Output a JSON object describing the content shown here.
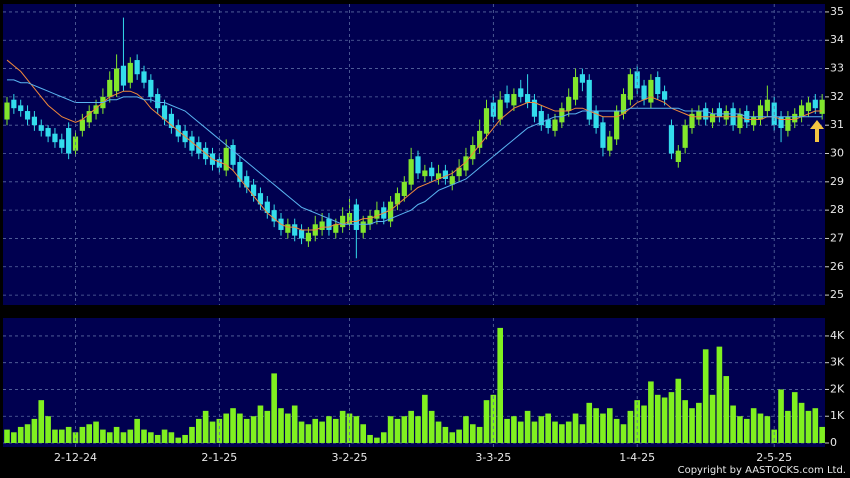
{
  "chart_data": [
    {
      "type": "candlestick",
      "open": [
        31.2,
        31.9,
        31.7,
        31.5,
        31.3,
        31.0,
        30.9,
        30.7,
        30.5,
        30.9,
        30.1,
        30.8,
        31.1,
        31.4,
        31.6,
        32.0,
        32.2,
        33.1,
        32.5,
        33.3,
        32.9,
        32.6,
        32.1,
        31.7,
        31.4,
        31.0,
        30.8,
        30.6,
        30.4,
        30.2,
        30.0,
        29.8,
        29.4,
        30.3,
        29.7,
        29.2,
        28.9,
        28.6,
        28.3,
        28.0,
        27.7,
        27.2,
        27.5,
        27.3,
        26.9,
        27.1,
        27.3,
        27.7,
        27.2,
        27.4,
        27.5,
        28.2,
        27.2,
        27.5,
        27.7,
        28.1,
        27.6,
        28.2,
        28.5,
        28.9,
        29.9,
        29.2,
        29.5,
        29.1,
        29.4,
        28.9,
        29.2,
        29.4,
        29.8,
        30.2,
        30.7,
        31.8,
        31.2,
        32.1,
        31.7,
        32.3,
        32.1,
        31.9,
        31.5,
        31.2,
        30.8,
        31.1,
        31.5,
        31.9,
        32.8,
        32.6,
        31.5,
        31.1,
        30.1,
        30.5,
        31.4,
        31.9,
        32.9,
        32.4,
        31.8,
        32.7,
        32.2,
        31.0,
        29.7,
        30.2,
        30.9,
        31.2,
        31.6,
        31.1,
        31.6,
        31.2,
        31.6,
        30.9,
        31.5,
        31.0,
        31.2,
        31.5,
        31.8,
        31.3,
        30.8,
        31.1,
        31.3,
        31.5,
        31.9,
        31.4
      ],
      "high": [
        32.0,
        32.1,
        31.9,
        31.7,
        31.5,
        31.2,
        31.0,
        30.9,
        30.7,
        31.1,
        30.8,
        31.4,
        31.7,
        31.9,
        32.3,
        32.9,
        33.5,
        34.8,
        33.4,
        33.5,
        33.1,
        32.8,
        32.3,
        31.9,
        31.6,
        31.2,
        31.0,
        30.8,
        30.6,
        30.4,
        30.2,
        30.0,
        30.5,
        30.5,
        29.9,
        29.4,
        29.1,
        28.8,
        28.5,
        28.2,
        27.9,
        27.7,
        27.7,
        27.5,
        27.4,
        27.8,
        27.9,
        27.9,
        27.7,
        28.1,
        28.4,
        28.4,
        27.8,
        28.0,
        28.3,
        28.3,
        28.5,
        28.8,
        29.2,
        30.2,
        30.1,
        29.6,
        29.7,
        29.6,
        29.6,
        29.4,
        29.8,
        30.2,
        30.6,
        31.2,
        31.9,
        32.1,
        32.2,
        32.4,
        32.3,
        32.6,
        32.8,
        32.1,
        31.7,
        31.4,
        31.4,
        31.8,
        32.3,
        33.0,
        33.0,
        32.8,
        31.7,
        31.3,
        30.8,
        31.7,
        32.3,
        33.0,
        33.1,
        32.6,
        32.8,
        32.9,
        32.4,
        31.2,
        30.3,
        31.2,
        31.6,
        31.7,
        31.8,
        31.6,
        31.8,
        31.7,
        31.8,
        31.6,
        31.7,
        31.5,
        31.9,
        32.4,
        32.0,
        31.5,
        31.5,
        31.6,
        31.9,
        32.0,
        32.1,
        32.1
      ],
      "low": [
        31.0,
        31.4,
        31.3,
        31.0,
        30.8,
        30.6,
        30.4,
        30.2,
        30.0,
        29.8,
        29.9,
        30.6,
        30.9,
        31.2,
        31.4,
        31.8,
        32.0,
        32.2,
        32.3,
        32.6,
        32.3,
        31.8,
        31.4,
        31.0,
        30.7,
        30.4,
        30.2,
        29.9,
        29.8,
        29.6,
        29.4,
        29.3,
        29.2,
        29.4,
        28.8,
        28.6,
        28.3,
        28.0,
        27.7,
        27.4,
        27.1,
        27.0,
        26.9,
        26.8,
        26.7,
        26.9,
        27.1,
        27.1,
        27.0,
        27.2,
        27.3,
        26.3,
        27.0,
        27.3,
        27.5,
        27.5,
        27.4,
        28.0,
        28.3,
        28.7,
        29.1,
        29.0,
        29.0,
        28.9,
        28.9,
        28.7,
        29.0,
        29.2,
        29.6,
        30.0,
        30.5,
        31.1,
        31.0,
        31.6,
        31.5,
        31.8,
        31.6,
        31.1,
        30.8,
        30.7,
        30.6,
        30.9,
        31.3,
        31.7,
        32.2,
        31.0,
        30.7,
        29.9,
        29.9,
        30.3,
        31.2,
        31.7,
        32.1,
        31.7,
        31.6,
        31.9,
        31.7,
        29.8,
        29.5,
        30.0,
        30.7,
        31.0,
        31.0,
        30.9,
        31.1,
        31.0,
        30.8,
        30.7,
        30.9,
        30.8,
        31.0,
        31.3,
        30.8,
        30.4,
        30.6,
        30.9,
        31.1,
        31.3,
        31.4,
        31.2
      ],
      "close": [
        31.8,
        31.6,
        31.5,
        31.2,
        31.0,
        30.8,
        30.6,
        30.4,
        30.2,
        30.0,
        30.6,
        31.2,
        31.5,
        31.7,
        32.0,
        32.6,
        33.0,
        32.4,
        33.2,
        32.8,
        32.5,
        32.0,
        31.6,
        31.2,
        30.9,
        30.6,
        30.4,
        30.1,
        30.0,
        29.8,
        29.6,
        29.5,
        30.2,
        29.6,
        29.0,
        28.8,
        28.5,
        28.2,
        27.9,
        27.6,
        27.3,
        27.5,
        27.1,
        27.0,
        27.2,
        27.5,
        27.6,
        27.3,
        27.5,
        27.8,
        27.9,
        27.3,
        27.6,
        27.8,
        28.0,
        27.7,
        28.3,
        28.6,
        29.0,
        29.8,
        29.3,
        29.4,
        29.2,
        29.3,
        29.1,
        29.2,
        29.5,
        29.9,
        30.3,
        30.8,
        31.6,
        31.3,
        31.9,
        31.8,
        32.1,
        32.0,
        31.8,
        31.3,
        31.0,
        30.9,
        31.2,
        31.6,
        32.0,
        32.7,
        32.5,
        31.2,
        30.9,
        30.2,
        30.6,
        31.5,
        32.1,
        32.8,
        32.3,
        31.9,
        32.6,
        32.1,
        31.9,
        30.0,
        30.1,
        31.0,
        31.4,
        31.5,
        31.2,
        31.4,
        31.3,
        31.5,
        31.0,
        31.4,
        31.1,
        31.3,
        31.7,
        31.9,
        31.0,
        30.9,
        31.3,
        31.4,
        31.7,
        31.8,
        31.6,
        31.9
      ],
      "up_color": "#82e62c",
      "down_color": "#33dcec",
      "series": [
        {
          "color": "#f0883a",
          "values": [
            33.3,
            33.1,
            32.9,
            32.6,
            32.3,
            32.0,
            31.7,
            31.5,
            31.3,
            31.2,
            31.1,
            31.2,
            31.4,
            31.6,
            31.8,
            32.0,
            32.1,
            32.2,
            32.2,
            32.1,
            31.9,
            31.6,
            31.4,
            31.2,
            31.0,
            30.8,
            30.6,
            30.4,
            30.2,
            30.0,
            29.8,
            29.7,
            29.6,
            29.4,
            29.1,
            28.8,
            28.5,
            28.2,
            27.9,
            27.7,
            27.5,
            27.4,
            27.4,
            27.3,
            27.3,
            27.3,
            27.4,
            27.4,
            27.5,
            27.5,
            27.6,
            27.6,
            27.7,
            27.7,
            27.8,
            27.9,
            28.0,
            28.2,
            28.4,
            28.6,
            28.8,
            28.9,
            29.0,
            29.1,
            29.2,
            29.3,
            29.5,
            29.7,
            30.0,
            30.3,
            30.6,
            30.9,
            31.2,
            31.4,
            31.6,
            31.7,
            31.8,
            31.8,
            31.7,
            31.6,
            31.5,
            31.5,
            31.5,
            31.6,
            31.6,
            31.5,
            31.4,
            31.3,
            31.3,
            31.3,
            31.4,
            31.6,
            31.8,
            31.9,
            32.0,
            31.9,
            31.8,
            31.6,
            31.5,
            31.4,
            31.3,
            31.3,
            31.3,
            31.3,
            31.3,
            31.3,
            31.3,
            31.3,
            31.2,
            31.2,
            31.2,
            31.3,
            31.3,
            31.2,
            31.2,
            31.2,
            31.3,
            31.4,
            31.5,
            31.5
          ]
        },
        {
          "color": "#5ab4f0",
          "values": [
            32.6,
            32.6,
            32.5,
            32.5,
            32.4,
            32.3,
            32.2,
            32.1,
            32.0,
            31.9,
            31.8,
            31.8,
            31.8,
            31.8,
            31.8,
            31.9,
            31.9,
            32.0,
            32.0,
            32.0,
            31.9,
            31.9,
            31.8,
            31.8,
            31.7,
            31.6,
            31.5,
            31.3,
            31.1,
            30.9,
            30.7,
            30.5,
            30.3,
            30.1,
            29.9,
            29.7,
            29.5,
            29.3,
            29.1,
            28.9,
            28.7,
            28.5,
            28.3,
            28.1,
            28.0,
            27.9,
            27.8,
            27.7,
            27.6,
            27.5,
            27.5,
            27.5,
            27.5,
            27.5,
            27.6,
            27.6,
            27.7,
            27.8,
            27.9,
            28.0,
            28.2,
            28.3,
            28.5,
            28.7,
            28.8,
            28.9,
            29.0,
            29.1,
            29.3,
            29.5,
            29.7,
            29.9,
            30.1,
            30.3,
            30.5,
            30.7,
            30.9,
            31.0,
            31.1,
            31.2,
            31.3,
            31.3,
            31.4,
            31.4,
            31.5,
            31.5,
            31.5,
            31.5,
            31.5,
            31.5,
            31.5,
            31.6,
            31.6,
            31.6,
            31.6,
            31.6,
            31.6,
            31.6,
            31.6,
            31.5,
            31.5,
            31.5,
            31.5,
            31.4,
            31.4,
            31.4,
            31.4,
            31.4,
            31.3,
            31.3,
            31.3,
            31.3,
            31.3,
            31.3,
            31.3,
            31.3,
            31.3,
            31.3,
            31.3,
            31.3
          ]
        }
      ],
      "ylim": [
        24.65,
        35.28
      ],
      "yticks": [
        25,
        26,
        27,
        28,
        29,
        30,
        31,
        32,
        33,
        34,
        35
      ],
      "grid": true
    },
    {
      "type": "bar",
      "categories": [
        null,
        null,
        null,
        null,
        null,
        null,
        null,
        null,
        null,
        null,
        "2-12-24",
        null,
        null,
        null,
        null,
        null,
        null,
        null,
        null,
        null,
        null,
        null,
        null,
        null,
        null,
        null,
        null,
        null,
        null,
        null,
        null,
        "2-1-25",
        null,
        null,
        null,
        null,
        null,
        null,
        null,
        null,
        null,
        null,
        null,
        null,
        null,
        null,
        null,
        null,
        null,
        null,
        "3-2-25",
        null,
        null,
        null,
        null,
        null,
        null,
        null,
        null,
        null,
        null,
        null,
        null,
        null,
        null,
        null,
        null,
        null,
        null,
        null,
        null,
        "3-3-25",
        null,
        null,
        null,
        null,
        null,
        null,
        null,
        null,
        null,
        null,
        null,
        null,
        null,
        null,
        null,
        null,
        null,
        null,
        null,
        null,
        "1-4-25",
        null,
        null,
        null,
        null,
        null,
        null,
        null,
        null,
        null,
        null,
        null,
        null,
        null,
        null,
        null,
        null,
        null,
        null,
        null,
        "2-5-25",
        null,
        null,
        null,
        null,
        null,
        null,
        null
      ],
      "values": [
        500,
        400,
        600,
        700,
        900,
        1600,
        1000,
        500,
        500,
        600,
        400,
        600,
        700,
        800,
        500,
        400,
        600,
        400,
        500,
        900,
        500,
        400,
        300,
        500,
        400,
        200,
        300,
        600,
        900,
        1200,
        800,
        900,
        1100,
        1300,
        1100,
        900,
        1000,
        1400,
        1200,
        2600,
        1300,
        1100,
        1400,
        800,
        700,
        900,
        800,
        1000,
        900,
        1200,
        1100,
        1000,
        700,
        300,
        200,
        400,
        1000,
        900,
        1000,
        1200,
        1000,
        1800,
        1200,
        800,
        600,
        400,
        500,
        1000,
        700,
        600,
        1600,
        1800,
        4300,
        900,
        1000,
        800,
        1200,
        800,
        1000,
        1100,
        800,
        700,
        800,
        1100,
        700,
        1500,
        1300,
        1100,
        1300,
        900,
        700,
        1200,
        1600,
        1400,
        2300,
        1800,
        1700,
        1900,
        2400,
        1600,
        1300,
        1500,
        3500,
        1800,
        3600,
        2500,
        1400,
        1000,
        900,
        1300,
        1100,
        1000,
        500,
        2000,
        1200,
        1900,
        1500,
        1200,
        1300,
        600
      ],
      "color": "#80f020",
      "ylim": [
        -150,
        4670
      ],
      "yticks": [
        0,
        {
          "value": 1000,
          "label": "1K"
        },
        {
          "value": 2000,
          "label": "2K"
        },
        {
          "value": 3000,
          "label": "3K"
        },
        {
          "value": 4000,
          "label": "4K"
        }
      ],
      "grid": true
    }
  ],
  "copyright": "Copyright by AASTOCKS.com Ltd."
}
